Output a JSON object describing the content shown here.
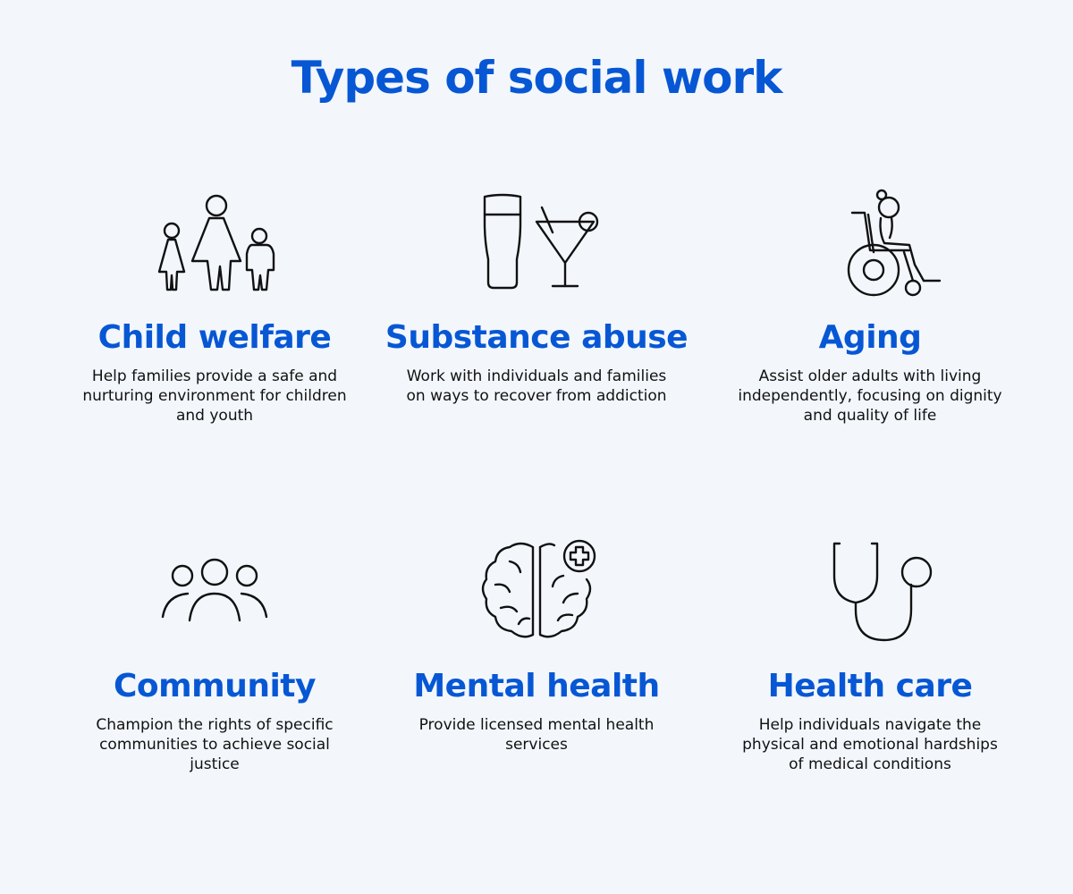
{
  "title": "Types of social work",
  "accent_color": "#0757d4",
  "background_color": "#f3f7fc",
  "cards": [
    {
      "icon": "family-icon",
      "title": "Child welfare",
      "description": "Help families provide a safe and nurturing environment for children and youth"
    },
    {
      "icon": "drinks-icon",
      "title": "Substance abuse",
      "description": "Work with individuals and families on ways to recover from addiction"
    },
    {
      "icon": "wheelchair-icon",
      "title": "Aging",
      "description": "Assist older adults with living independently, focusing on dignity and quality of life"
    },
    {
      "icon": "group-icon",
      "title": "Community",
      "description": "Champion the rights of specific communities to achieve social justice"
    },
    {
      "icon": "brain-icon",
      "title": "Mental health",
      "description": "Provide licensed mental health services"
    },
    {
      "icon": "stethoscope-icon",
      "title": "Health care",
      "description": "Help individuals navigate the physical and emotional hardships of medical conditions"
    }
  ]
}
